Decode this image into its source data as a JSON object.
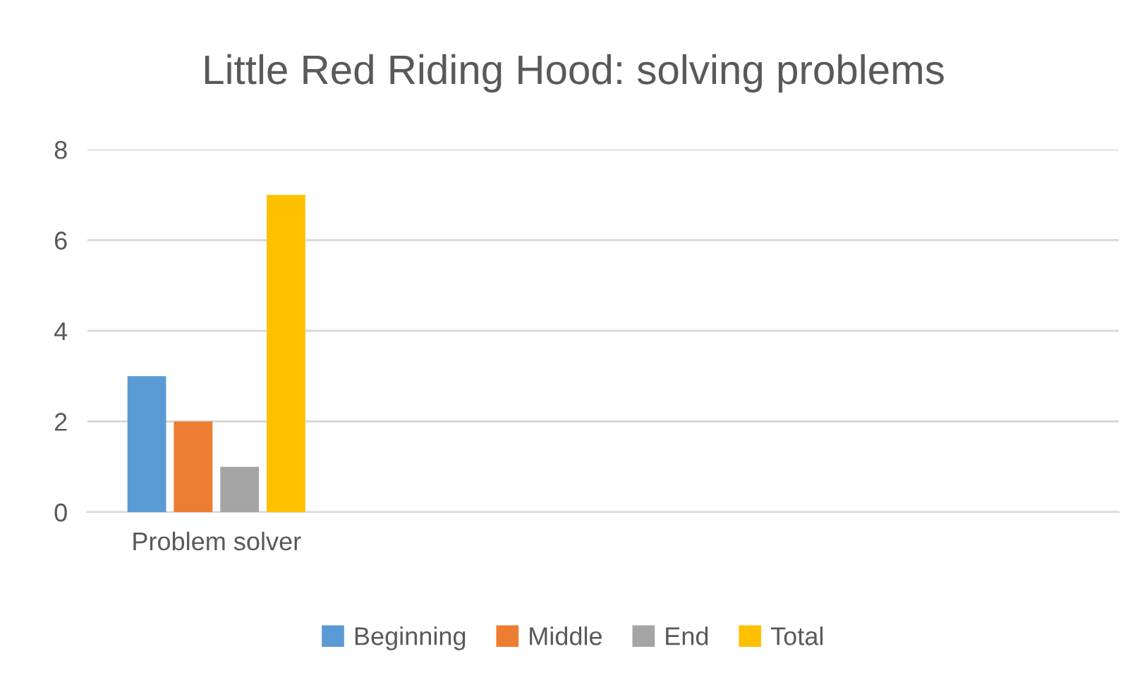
{
  "chart_data": {
    "type": "bar",
    "title": "Little Red Riding Hood: solving problems",
    "categories": [
      "Problem solver",
      null,
      null,
      null
    ],
    "series": [
      {
        "name": "Beginning",
        "color": "#5b9bd5",
        "values": [
          3,
          null,
          null,
          null
        ]
      },
      {
        "name": "Middle",
        "color": "#ed7d31",
        "values": [
          2,
          null,
          null,
          null
        ]
      },
      {
        "name": "End",
        "color": "#a5a5a5",
        "values": [
          1,
          null,
          null,
          null
        ]
      },
      {
        "name": "Total",
        "color": "#ffc000",
        "values": [
          7,
          null,
          null,
          null
        ]
      }
    ],
    "ylim": [
      0,
      8
    ],
    "yticks": [
      0,
      2,
      4,
      6,
      8
    ],
    "grid": "y",
    "legend": "bottom"
  }
}
